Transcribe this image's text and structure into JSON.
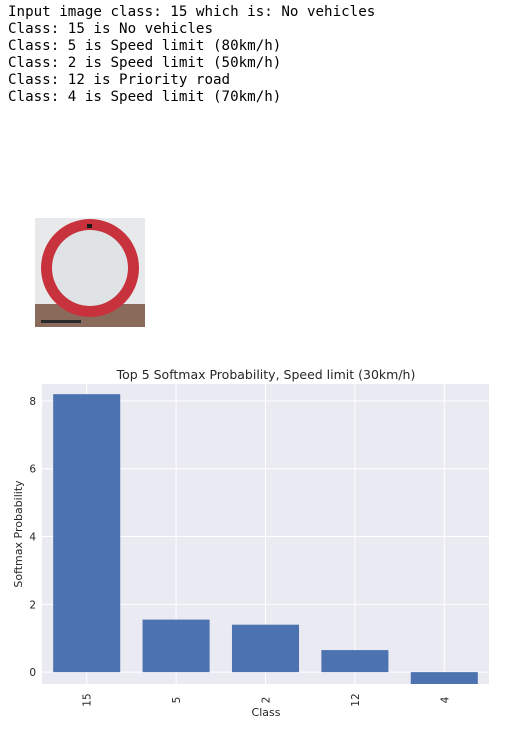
{
  "output_lines": [
    "Input image class: 15 which is: No vehicles",
    "Class: 15 is No vehicles",
    "Class: 5 is Speed limit (80km/h)",
    "Class: 2 is Speed limit (50km/h)",
    "Class: 12 is Priority road",
    "Class: 4 is Speed limit (70km/h)"
  ],
  "input_image": {
    "icon": "no-vehicles-sign",
    "ring_color": "#c8323c",
    "inner_color": "#dfe3e6"
  },
  "chart_data": {
    "type": "bar",
    "title": "Top 5 Softmax Probability, Speed limit (30km/h)",
    "xlabel": "Class",
    "ylabel": "Softmax Probability",
    "categories": [
      "15",
      "5",
      "2",
      "12",
      "4"
    ],
    "values": [
      8.2,
      1.55,
      1.4,
      0.65,
      -0.35
    ],
    "ylim": [
      -0.35,
      8.5
    ],
    "yticks": [
      0,
      2,
      4,
      6,
      8
    ],
    "bar_color": "#4c72b0",
    "background": "#eaeaf2",
    "grid": true
  }
}
